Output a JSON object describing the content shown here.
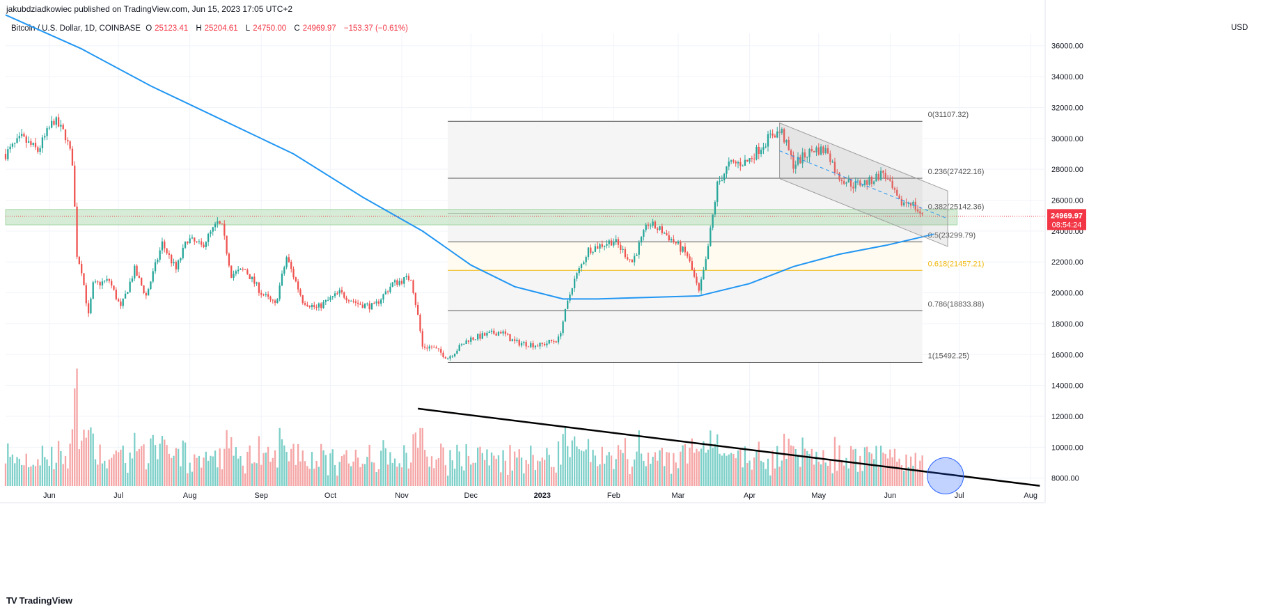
{
  "header": {
    "publisher": "jakubdziadkowiec published on TradingView.com, Jun 15, 2023 17:05 UTC+2",
    "symbol": "Bitcoin / U.S. Dollar, 1D, COINBASE",
    "open_label": "O",
    "open_value": "25123.41",
    "high_label": "H",
    "high_value": "25204.61",
    "low_label": "L",
    "low_value": "24750.00",
    "close_label": "C",
    "close_value": "24969.97",
    "change": "−153.37 (−0.61%)",
    "currency": "USD"
  },
  "footer": {
    "logo_text": "TradingView"
  },
  "colors": {
    "up": "#26a69a",
    "down": "#ef5350",
    "ma": "#2196f3",
    "fib_gold": "#f0b90b",
    "zone": "#c8e6c9",
    "price_tag": "#f23645",
    "vol_up": "#7ccfc8",
    "vol_down": "#f5a5a5",
    "grid": "#f0f3fa"
  },
  "chart_data": {
    "type": "candlestick",
    "title": "Bitcoin / U.S. Dollar, 1D, COINBASE",
    "y_axis": {
      "ticks": [
        "36000.00",
        "34000.00",
        "32000.00",
        "30000.00",
        "28000.00",
        "26000.00",
        "24000.00",
        "22000.00",
        "20000.00",
        "18000.00",
        "16000.00",
        "14000.00",
        "12000.00",
        "10000.00",
        "8000.00"
      ],
      "range": [
        7400,
        36800
      ]
    },
    "x_axis": {
      "ticks": [
        "Jun",
        "Jul",
        "Aug",
        "Sep",
        "Oct",
        "Nov",
        "Dec",
        "2023",
        "Feb",
        "Mar",
        "Apr",
        "May",
        "Jun",
        "Jul",
        "Aug"
      ],
      "tick_dates": [
        "2022-06-01",
        "2022-07-01",
        "2022-08-01",
        "2022-09-01",
        "2022-10-01",
        "2022-11-01",
        "2022-12-01",
        "2023-01-01",
        "2023-02-01",
        "2023-03-01",
        "2023-04-01",
        "2023-05-01",
        "2023-06-01",
        "2023-07-01",
        "2023-08-01"
      ],
      "range": [
        "2022-05-13",
        "2023-08-07"
      ]
    },
    "last_price": {
      "value": "24969.97",
      "countdown": "08:54:24"
    },
    "price_path": [
      [
        "2022-05-13",
        29000
      ],
      [
        "2022-05-20",
        30000
      ],
      [
        "2022-05-27",
        29200
      ],
      [
        "2022-06-03",
        31200
      ],
      [
        "2022-06-08",
        30200
      ],
      [
        "2022-06-11",
        28500
      ],
      [
        "2022-06-13",
        22500
      ],
      [
        "2022-06-15",
        21500
      ],
      [
        "2022-06-18",
        18500
      ],
      [
        "2022-06-20",
        20500
      ],
      [
        "2022-06-27",
        20800
      ],
      [
        "2022-07-02",
        19000
      ],
      [
        "2022-07-08",
        21500
      ],
      [
        "2022-07-13",
        19800
      ],
      [
        "2022-07-20",
        23200
      ],
      [
        "2022-07-26",
        21500
      ],
      [
        "2022-07-31",
        23500
      ],
      [
        "2022-08-06",
        23000
      ],
      [
        "2022-08-13",
        24500
      ],
      [
        "2022-08-15",
        24200
      ],
      [
        "2022-08-19",
        21200
      ],
      [
        "2022-08-25",
        21500
      ],
      [
        "2022-09-01",
        20000
      ],
      [
        "2022-09-07",
        19200
      ],
      [
        "2022-09-12",
        22300
      ],
      [
        "2022-09-19",
        19500
      ],
      [
        "2022-09-25",
        19000
      ],
      [
        "2022-10-05",
        20000
      ],
      [
        "2022-10-13",
        19300
      ],
      [
        "2022-10-20",
        19100
      ],
      [
        "2022-10-28",
        20600
      ],
      [
        "2022-11-05",
        21000
      ],
      [
        "2022-11-08",
        18500
      ],
      [
        "2022-11-10",
        16500
      ],
      [
        "2022-11-14",
        16500
      ],
      [
        "2022-11-21",
        15800
      ],
      [
        "2022-11-30",
        17000
      ],
      [
        "2022-12-14",
        17500
      ],
      [
        "2022-12-20",
        16800
      ],
      [
        "2022-12-31",
        16600
      ],
      [
        "2023-01-08",
        17000
      ],
      [
        "2023-01-14",
        20500
      ],
      [
        "2023-01-21",
        22800
      ],
      [
        "2023-02-01",
        23400
      ],
      [
        "2023-02-09",
        22000
      ],
      [
        "2023-02-16",
        24500
      ],
      [
        "2023-02-22",
        24000
      ],
      [
        "2023-02-28",
        23200
      ],
      [
        "2023-03-05",
        22400
      ],
      [
        "2023-03-10",
        20000
      ],
      [
        "2023-03-13",
        22000
      ],
      [
        "2023-03-18",
        27000
      ],
      [
        "2023-03-23",
        28300
      ],
      [
        "2023-03-31",
        28500
      ],
      [
        "2023-04-11",
        30300
      ],
      [
        "2023-04-15",
        30400
      ],
      [
        "2023-04-20",
        28300
      ],
      [
        "2023-04-26",
        29000
      ],
      [
        "2023-04-29",
        29300
      ],
      [
        "2023-05-05",
        29200
      ],
      [
        "2023-05-09",
        27600
      ],
      [
        "2023-05-16",
        27000
      ],
      [
        "2023-05-23",
        27200
      ],
      [
        "2023-05-29",
        27800
      ],
      [
        "2023-06-05",
        25800
      ],
      [
        "2023-06-10",
        25900
      ],
      [
        "2023-06-15",
        24970
      ]
    ],
    "ma_path": [
      [
        "2022-05-13",
        38000
      ],
      [
        "2022-06-15",
        35800
      ],
      [
        "2022-07-15",
        33400
      ],
      [
        "2022-08-15",
        31200
      ],
      [
        "2022-09-15",
        29000
      ],
      [
        "2022-10-15",
        26200
      ],
      [
        "2022-11-10",
        24000
      ],
      [
        "2022-12-01",
        21800
      ],
      [
        "2022-12-20",
        20400
      ],
      [
        "2023-01-10",
        19600
      ],
      [
        "2023-01-25",
        19600
      ],
      [
        "2023-02-15",
        19700
      ],
      [
        "2023-03-10",
        19800
      ],
      [
        "2023-04-01",
        20600
      ],
      [
        "2023-04-20",
        21700
      ],
      [
        "2023-05-10",
        22500
      ],
      [
        "2023-05-31",
        23100
      ],
      [
        "2023-06-20",
        23800
      ]
    ],
    "fibonacci": {
      "start_date": "2022-11-21",
      "end_date": "2023-06-15",
      "levels": [
        {
          "ratio": "0",
          "value": 31107.32,
          "label": "0(31107.32)"
        },
        {
          "ratio": "0.236",
          "value": 27422.16,
          "label": "0.236(27422.16)"
        },
        {
          "ratio": "0.382",
          "value": 25142.36,
          "label": "0.382(25142.36)"
        },
        {
          "ratio": "0.5",
          "value": 23299.79,
          "label": "0.5(23299.79)"
        },
        {
          "ratio": "0.618",
          "value": 21457.21,
          "label": "0.618(21457.21)"
        },
        {
          "ratio": "0.786",
          "value": 18833.88,
          "label": "0.786(18833.88)"
        },
        {
          "ratio": "1",
          "value": 15492.25,
          "label": "1(15492.25)"
        }
      ]
    },
    "zone": {
      "top": 25400,
      "bottom": 24400,
      "start_date": "2022-05-13",
      "end_date": "2023-06-15"
    },
    "channel": {
      "upper": [
        [
          "2023-04-14",
          31000
        ],
        [
          "2023-06-26",
          26600
        ]
      ],
      "lower": [
        [
          "2023-04-14",
          27400
        ],
        [
          "2023-06-26",
          23000
        ]
      ]
    },
    "volume_trendline": [
      [
        "2022-11-08",
        12500
      ],
      [
        "2023-08-05",
        7500
      ]
    ],
    "highlight_circle": {
      "date": "2023-06-25",
      "value": 8150
    }
  }
}
